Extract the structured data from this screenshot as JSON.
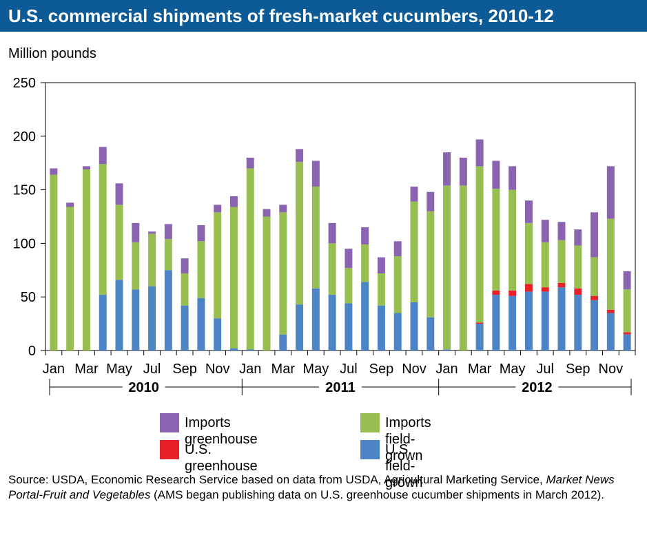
{
  "title": "U.S. commercial shipments of fresh-market cucumbers, 2010-12",
  "colors": {
    "title_bg": "#0c5a96",
    "imports_greenhouse": "#8a64b0",
    "imports_field": "#98be52",
    "us_greenhouse": "#e8202a",
    "us_field": "#4d84c6"
  },
  "legend": [
    {
      "key": "imports_greenhouse",
      "label": "Imports greenhouse"
    },
    {
      "key": "imports_field",
      "label": "Imports field-grown"
    },
    {
      "key": "us_greenhouse",
      "label": "U.S. greenhouse"
    },
    {
      "key": "us_field",
      "label": "U.S. field-grown"
    }
  ],
  "source": {
    "prefix": "Source: USDA, Economic Research Service based on data from USDA, Agricultural Marketing Service, ",
    "italic": "Market News Portal-Fruit and Vegetables",
    "suffix": " (AMS began publishing data on U.S. greenhouse cucumber shipments in March 2012)."
  },
  "chart_data": {
    "type": "bar",
    "stacked": true,
    "ylabel": "Million pounds",
    "ylim": [
      0,
      250
    ],
    "yticks": [
      0,
      50,
      100,
      150,
      200,
      250
    ],
    "grid": false,
    "legend_position": "bottom",
    "categories": [
      "Jan 2010",
      "Feb 2010",
      "Mar 2010",
      "Apr 2010",
      "May 2010",
      "Jun 2010",
      "Jul 2010",
      "Aug 2010",
      "Sep 2010",
      "Oct 2010",
      "Nov 2010",
      "Dec 2010",
      "Jan 2011",
      "Feb 2011",
      "Mar 2011",
      "Apr 2011",
      "May 2011",
      "Jun 2011",
      "Jul 2011",
      "Aug 2011",
      "Sep 2011",
      "Oct 2011",
      "Nov 2011",
      "Dec 2011",
      "Jan 2012",
      "Feb 2012",
      "Mar 2012",
      "Apr 2012",
      "May 2012",
      "Jun 2012",
      "Jul 2012",
      "Aug 2012",
      "Sep 2012",
      "Oct 2012",
      "Nov 2012",
      "Dec 2012"
    ],
    "xtick_labels": [
      "Jan",
      "Mar",
      "May",
      "Jul",
      "Sep",
      "Nov",
      "Jan",
      "Mar",
      "May",
      "Jul",
      "Sep",
      "Nov",
      "Jan",
      "Mar",
      "May",
      "Jul",
      "Sep",
      "Nov"
    ],
    "year_labels": [
      "2010",
      "2011",
      "2012"
    ],
    "series": [
      {
        "name": "U.S. field-grown",
        "key": "us_field",
        "values": [
          0,
          0,
          0,
          52,
          66,
          57,
          60,
          75,
          42,
          49,
          30,
          2,
          1,
          0,
          15,
          43,
          58,
          52,
          44,
          64,
          42,
          35,
          45,
          31,
          1,
          0,
          25,
          52,
          51,
          55,
          55,
          59,
          52,
          47,
          35,
          15
        ]
      },
      {
        "name": "U.S. greenhouse",
        "key": "us_greenhouse",
        "values": [
          0,
          0,
          0,
          0,
          0,
          0,
          0,
          0,
          0,
          0,
          0,
          0,
          0,
          0,
          0,
          0,
          0,
          0,
          0,
          0,
          0,
          0,
          0,
          0,
          0,
          0,
          1,
          4,
          5,
          7,
          4,
          4,
          6,
          4,
          3,
          2
        ]
      },
      {
        "name": "Imports field-grown",
        "key": "imports_field",
        "values": [
          164,
          134,
          169,
          122,
          70,
          44,
          49,
          29,
          30,
          53,
          99,
          132,
          169,
          125,
          114,
          133,
          95,
          48,
          33,
          35,
          30,
          53,
          94,
          99,
          153,
          154,
          146,
          95,
          94,
          57,
          42,
          40,
          40,
          36,
          85,
          40
        ]
      },
      {
        "name": "Imports greenhouse",
        "key": "imports_greenhouse",
        "values": [
          6,
          4,
          3,
          16,
          20,
          18,
          2,
          14,
          14,
          15,
          7,
          10,
          10,
          7,
          7,
          12,
          24,
          19,
          18,
          16,
          15,
          14,
          14,
          18,
          31,
          26,
          25,
          26,
          22,
          21,
          21,
          17,
          15,
          42,
          49,
          17
        ]
      }
    ]
  }
}
